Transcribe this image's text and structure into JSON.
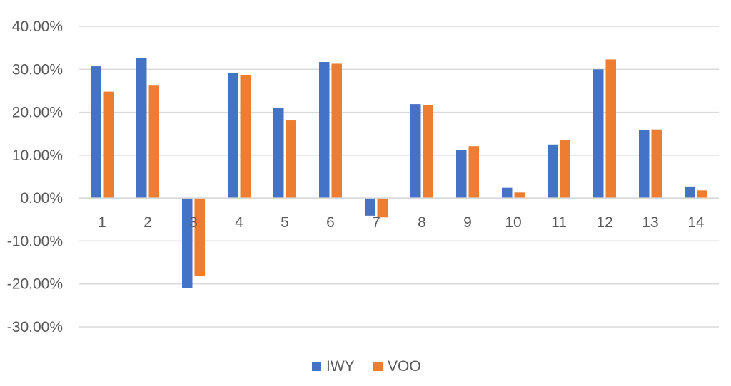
{
  "chart_data": {
    "type": "bar",
    "title": "",
    "xlabel": "",
    "ylabel": "",
    "categories": [
      "1",
      "2",
      "3",
      "4",
      "5",
      "6",
      "7",
      "8",
      "9",
      "10",
      "11",
      "12",
      "13",
      "14"
    ],
    "series": [
      {
        "name": "IWY",
        "color": "#4472C4",
        "values": [
          0.307,
          0.326,
          -0.209,
          0.291,
          0.211,
          0.317,
          -0.041,
          0.219,
          0.112,
          0.024,
          0.125,
          0.3,
          0.159,
          0.027
        ]
      },
      {
        "name": "VOO",
        "color": "#ED7D31",
        "values": [
          0.248,
          0.262,
          -0.181,
          0.287,
          0.181,
          0.313,
          -0.045,
          0.216,
          0.121,
          0.013,
          0.135,
          0.323,
          0.16,
          0.018
        ]
      }
    ],
    "ylim": [
      -0.3,
      0.4
    ],
    "yticks": [
      0.4,
      0.3,
      0.2,
      0.1,
      0.0,
      -0.1,
      -0.2,
      -0.3
    ],
    "ytick_labels": [
      "40.00%",
      "30.00%",
      "20.00%",
      "10.00%",
      "0.00%",
      "-10.00%",
      "-20.00%",
      "-30.00%"
    ],
    "grid": true,
    "legend": "bottom",
    "gridline_color": "#d9d9d9",
    "text_color": "#595959"
  }
}
